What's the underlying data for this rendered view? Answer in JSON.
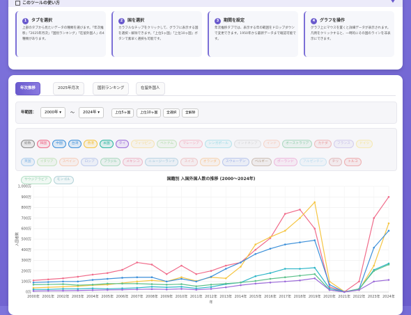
{
  "guide": {
    "title": "このツールの使い方",
    "steps": [
      {
        "num": "1",
        "title": "タブを選択",
        "text": "上部のタブから見たいデータの種類を選びます。「年次推移」「2025年月次」「国別ランキング」「在留外国人」の4種類があります。"
      },
      {
        "num": "2",
        "title": "国を選択",
        "text": "カラフルなチップをクリックして、グラフに表示する国を選択・解除できます。「上位5ヶ国」「上位10ヶ国」ボタンで素早く選択も可能です。"
      },
      {
        "num": "3",
        "title": "期間を設定",
        "text": "年次推移タブでは、表示する年の範囲をドロップダウンで変更できます。1950年から最新データまで確認可能です。"
      },
      {
        "num": "4",
        "title": "グラフを操作",
        "text": "グラフ上にマウスを置くと詳細データが表示されます。凡例をクリックすると、一時的にその国のラインを非表示にできます。"
      }
    ]
  },
  "tabs": [
    "年次推移",
    "2025年月次",
    "国別ランキング",
    "在留外国人"
  ],
  "controls": {
    "label": "年範囲：",
    "from": "2000年",
    "sep": "〜",
    "to": "2024年",
    "buttons": [
      "上位5ヶ国",
      "上位10ヶ国",
      "全選択",
      "全解除"
    ]
  },
  "chips": [
    {
      "name": "総数",
      "color": "#888888",
      "selected": true
    },
    {
      "name": "韓国",
      "color": "#f06b8a",
      "selected": true
    },
    {
      "name": "中国",
      "color": "#3b8fd9",
      "selected": true
    },
    {
      "name": "台湾",
      "color": "#3b8fd9",
      "selected": true
    },
    {
      "name": "香港",
      "color": "#f5c542",
      "selected": true
    },
    {
      "name": "米国",
      "color": "#2bb5a0",
      "selected": true
    },
    {
      "name": "タイ",
      "color": "#9b6ad9",
      "selected": true
    },
    {
      "name": "フィリピン",
      "color": "#f5c542",
      "selected": false
    },
    {
      "name": "ベトナム",
      "color": "#7cc66a",
      "selected": false
    },
    {
      "name": "マレーシア",
      "color": "#f06b8a",
      "selected": false
    },
    {
      "name": "シンガポール",
      "color": "#4fc3d6",
      "selected": false
    },
    {
      "name": "インドネシア",
      "color": "#bbbbbb",
      "selected": false
    },
    {
      "name": "インド",
      "color": "#f5a07a",
      "selected": false
    },
    {
      "name": "オーストラリア",
      "color": "#3aaa6a",
      "selected": false
    },
    {
      "name": "カナダ",
      "color": "#e05a5a",
      "selected": false
    },
    {
      "name": "フランス",
      "color": "#9b8ad9",
      "selected": false
    },
    {
      "name": "ドイツ",
      "color": "#f5d542",
      "selected": false
    },
    {
      "name": "英国",
      "color": "#3b8fd9",
      "selected": false
    },
    {
      "name": "イタリア",
      "color": "#7cc66a",
      "selected": false
    },
    {
      "name": "スペイン",
      "color": "#f5905a",
      "selected": false
    },
    {
      "name": "ロシア",
      "color": "#6a8ad9",
      "selected": false
    },
    {
      "name": "ブラジル",
      "color": "#3aaa6a",
      "selected": false
    },
    {
      "name": "メキシコ",
      "color": "#e05a7a",
      "selected": false
    },
    {
      "name": "ニュージーランド",
      "color": "#5aa0c0",
      "selected": false
    },
    {
      "name": "スイス",
      "color": "#e07a7a",
      "selected": false
    },
    {
      "name": "オランダ",
      "color": "#f5a042",
      "selected": false
    },
    {
      "name": "スウェーデン",
      "color": "#5a7ad9",
      "selected": false
    },
    {
      "name": "ベルギー",
      "color": "#8a6a4a",
      "selected": false
    },
    {
      "name": "ポーランド",
      "color": "#e05ab0",
      "selected": false
    },
    {
      "name": "アルゼンチン",
      "color": "#8ac6e6",
      "selected": false
    },
    {
      "name": "チリ",
      "color": "#c05a5a",
      "selected": false
    },
    {
      "name": "トルコ",
      "color": "#e03a3a",
      "selected": false
    },
    {
      "name": "サウジアラビア",
      "color": "#3aaa6a",
      "selected": false
    },
    {
      "name": "モンゴル",
      "color": "#3a8a9a",
      "selected": false
    }
  ],
  "chart_data": {
    "type": "line",
    "title": "国籍別 入国外国人数の推移 (2000〜2024年)",
    "x_label": "年",
    "y_label": "入国者数",
    "grid": true,
    "categories": [
      "2000年",
      "2001年",
      "2002年",
      "2003年",
      "2004年",
      "2005年",
      "2006年",
      "2007年",
      "2008年",
      "2009年",
      "2010年",
      "2011年",
      "2012年",
      "2013年",
      "2014年",
      "2015年",
      "2016年",
      "2017年",
      "2018年",
      "2019年",
      "2020年",
      "2021年",
      "2022年",
      "2023年",
      "2024年"
    ],
    "ylim": [
      0,
      1000
    ],
    "yticks": [
      {
        "value": 0,
        "label": "0万"
      },
      {
        "value": 100,
        "label": "100万"
      },
      {
        "value": 200,
        "label": "200万"
      },
      {
        "value": 300,
        "label": "300万"
      },
      {
        "value": 400,
        "label": "400万"
      },
      {
        "value": 500,
        "label": "500万"
      },
      {
        "value": 600,
        "label": "600万"
      },
      {
        "value": 700,
        "label": "700万"
      },
      {
        "value": 800,
        "label": "800万"
      },
      {
        "value": 900,
        "label": "900万"
      },
      {
        "value": 1000,
        "label": "1,000万"
      }
    ],
    "series": [
      {
        "name": "韓国",
        "color": "#f06b8a",
        "values": [
          110,
          120,
          130,
          145,
          165,
          180,
          210,
          280,
          260,
          170,
          250,
          170,
          200,
          250,
          280,
          400,
          510,
          740,
          780,
          600,
          50,
          2,
          100,
          700,
          900
        ]
      },
      {
        "name": "中国",
        "color": "#f5c542",
        "values": [
          40,
          45,
          50,
          55,
          65,
          70,
          85,
          100,
          110,
          100,
          140,
          105,
          140,
          130,
          240,
          450,
          520,
          580,
          700,
          850,
          100,
          5,
          20,
          250,
          650
        ]
      },
      {
        "name": "台湾",
        "color": "#3b8fd9",
        "values": [
          90,
          95,
          100,
          100,
          115,
          125,
          135,
          140,
          140,
          100,
          125,
          100,
          145,
          220,
          280,
          360,
          410,
          450,
          470,
          490,
          70,
          1,
          30,
          420,
          580
        ]
      },
      {
        "name": "香港",
        "color": "#2bb5c7",
        "values": [
          25,
          25,
          30,
          30,
          35,
          30,
          35,
          40,
          50,
          45,
          50,
          35,
          48,
          75,
          90,
          150,
          180,
          220,
          220,
          230,
          35,
          1,
          25,
          210,
          270
        ]
      },
      {
        "name": "米国",
        "color": "#5cc08a",
        "values": [
          70,
          72,
          75,
          65,
          70,
          80,
          80,
          80,
          75,
          70,
          75,
          55,
          70,
          80,
          90,
          105,
          125,
          140,
          155,
          170,
          20,
          2,
          30,
          200,
          260
        ]
      },
      {
        "name": "タイ",
        "color": "#9b6ad9",
        "values": [
          10,
          12,
          13,
          15,
          18,
          20,
          22,
          25,
          28,
          25,
          30,
          22,
          30,
          45,
          65,
          80,
          90,
          100,
          110,
          130,
          20,
          1,
          20,
          100,
          115
        ]
      }
    ]
  }
}
